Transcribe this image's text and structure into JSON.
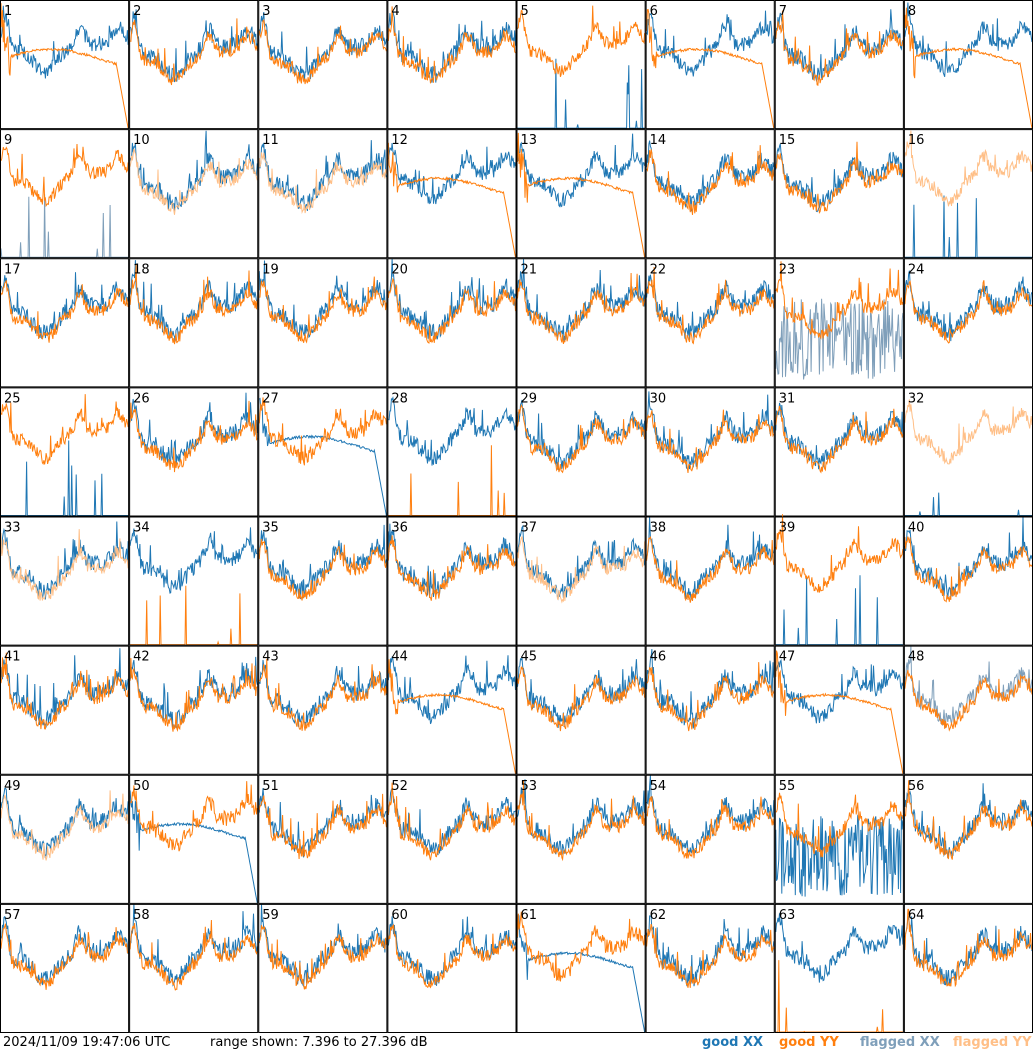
{
  "chart_data": {
    "type": "line",
    "layout_kind": "small-multiples",
    "panel_count": 64,
    "panel_labels": [
      "1",
      "2",
      "3",
      "4",
      "5",
      "6",
      "7",
      "8",
      "9",
      "10",
      "11",
      "12",
      "13",
      "14",
      "15",
      "16",
      "17",
      "18",
      "19",
      "20",
      "21",
      "22",
      "23",
      "24",
      "25",
      "26",
      "27",
      "28",
      "29",
      "30",
      "31",
      "32",
      "33",
      "34",
      "35",
      "36",
      "37",
      "38",
      "39",
      "40",
      "41",
      "42",
      "43",
      "44",
      "45",
      "46",
      "47",
      "48",
      "49",
      "50",
      "51",
      "52",
      "53",
      "54",
      "55",
      "56",
      "57",
      "58",
      "59",
      "60",
      "61",
      "62",
      "63",
      "64"
    ],
    "y_range_db": [
      7.396,
      27.396
    ],
    "series": [
      {
        "name": "good XX",
        "color": "#1f77b4"
      },
      {
        "name": "good YY",
        "color": "#ff7f0e"
      },
      {
        "name": "flagged XX",
        "color": "#7f9fba"
      },
      {
        "name": "flagged YY",
        "color": "#ffbf87"
      }
    ],
    "panel_status": {
      "flagged_xx": [
        9,
        23,
        48
      ],
      "flagged_yy": [
        10,
        11,
        16,
        32,
        33,
        37,
        49
      ]
    },
    "panel_shapes": {
      "normal": [
        2,
        3,
        4,
        7,
        14,
        15,
        17,
        18,
        19,
        20,
        21,
        22,
        24,
        26,
        29,
        30,
        31,
        35,
        36,
        38,
        40,
        41,
        42,
        43,
        45,
        46,
        51,
        52,
        54,
        56,
        57,
        58,
        59,
        60,
        62,
        64
      ],
      "yy_rolloff": [
        1,
        6,
        8,
        12,
        13,
        44,
        47
      ],
      "xx_rolloff": [
        27,
        50,
        61
      ],
      "xx_dead": [
        5,
        16,
        25,
        32,
        39
      ],
      "yy_dead": [
        28,
        34,
        63
      ],
      "xx_flat_noisy": [
        23,
        55
      ],
      "xx_spiky_dead": [
        9
      ]
    }
  },
  "footer": {
    "timestamp": "2024/11/09 19:47:06 UTC",
    "range_text": "range shown: 7.396 to 27.396 dB"
  },
  "legend": {
    "good_xx": "good XX",
    "good_yy": "good YY",
    "flagged_xx": "flagged XX",
    "flagged_yy": "flagged YY"
  },
  "colors": {
    "good_xx": "#1f77b4",
    "good_yy": "#ff7f0e",
    "flagged_xx": "#7f9fba",
    "flagged_yy": "#ffbf87"
  }
}
